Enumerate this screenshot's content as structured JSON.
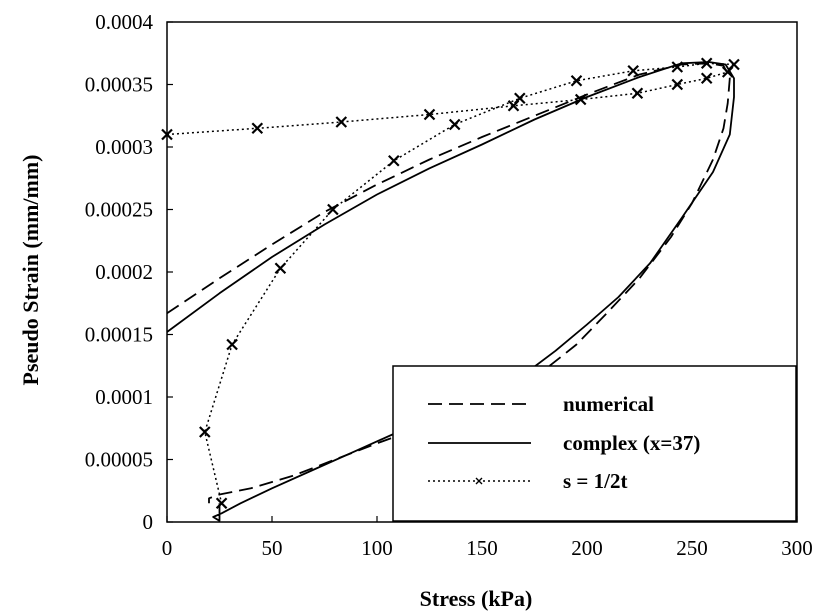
{
  "chart_data": {
    "type": "line",
    "xlabel": "Stress (kPa)",
    "ylabel": "Pseudo Strain (mm/mm)",
    "xlim": [
      0,
      300
    ],
    "ylim": [
      0,
      0.0004
    ],
    "x_ticks": [
      0,
      50,
      100,
      150,
      200,
      250,
      300
    ],
    "x_tick_labels": [
      "0",
      "50",
      "100",
      "150",
      "200",
      "250",
      "300"
    ],
    "y_ticks": [
      0,
      5e-05,
      0.0001,
      0.00015,
      0.0002,
      0.00025,
      0.0003,
      0.00035,
      0.0004
    ],
    "y_tick_labels": [
      "0",
      "0.00005",
      "0.0001",
      "0.00015",
      "0.0002",
      "0.00025",
      "0.0003",
      "0.00035",
      "0.0004"
    ],
    "grid": false,
    "legend_position": "bottom-right",
    "series": [
      {
        "name": "numerical",
        "style": "dashed",
        "color": "#000000",
        "points": [
          [
            0,
            0.000167
          ],
          [
            25,
            0.000195
          ],
          [
            50,
            0.000222
          ],
          [
            75,
            0.000248
          ],
          [
            100,
            0.00027
          ],
          [
            125,
            0.00029
          ],
          [
            150,
            0.000308
          ],
          [
            175,
            0.000325
          ],
          [
            200,
            0.000342
          ],
          [
            225,
            0.000358
          ],
          [
            245,
            0.000366
          ],
          [
            258,
            0.000367
          ],
          [
            265,
            0.000365
          ],
          [
            268,
            0.000355
          ],
          [
            267,
            0.000335
          ],
          [
            265,
            0.000315
          ],
          [
            260,
            0.00029
          ],
          [
            250,
            0.000255
          ],
          [
            240,
            0.000228
          ],
          [
            225,
            0.000195
          ],
          [
            210,
            0.000168
          ],
          [
            195,
            0.000142
          ],
          [
            180,
            0.000122
          ],
          [
            160,
            0.000102
          ],
          [
            140,
            8.7e-05
          ],
          [
            120,
            7.5e-05
          ],
          [
            100,
            6.3e-05
          ],
          [
            80,
            5e-05
          ],
          [
            60,
            3.7e-05
          ],
          [
            40,
            2.7e-05
          ],
          [
            25,
            2.2e-05
          ],
          [
            20,
            1.9e-05
          ],
          [
            20,
            1.5e-05
          ]
        ]
      },
      {
        "name": "complex (x=37)",
        "style": "solid",
        "color": "#000000",
        "points": [
          [
            0,
            0.000152
          ],
          [
            25,
            0.000183
          ],
          [
            50,
            0.000212
          ],
          [
            75,
            0.000238
          ],
          [
            100,
            0.000262
          ],
          [
            125,
            0.000283
          ],
          [
            150,
            0.000302
          ],
          [
            175,
            0.000322
          ],
          [
            200,
            0.00034
          ],
          [
            225,
            0.000356
          ],
          [
            245,
            0.000367
          ],
          [
            258,
            0.000368
          ],
          [
            266,
            0.000366
          ],
          [
            270,
            0.000355
          ],
          [
            270,
            0.00034
          ],
          [
            268,
            0.00031
          ],
          [
            260,
            0.00028
          ],
          [
            245,
            0.000243
          ],
          [
            230,
            0.000207
          ],
          [
            215,
            0.00018
          ],
          [
            200,
            0.000158
          ],
          [
            185,
            0.000137
          ],
          [
            170,
            0.000118
          ],
          [
            150,
            0.0001
          ],
          [
            130,
            8.5e-05
          ],
          [
            110,
            7.2e-05
          ],
          [
            90,
            5.7e-05
          ],
          [
            70,
            4.2e-05
          ],
          [
            50,
            2.7e-05
          ],
          [
            35,
            1.5e-05
          ],
          [
            26,
            7e-06
          ],
          [
            22,
            4e-06
          ],
          [
            25,
            1e-06
          ],
          [
            25,
            1.5e-05
          ]
        ]
      },
      {
        "name": "s = 1/2t",
        "style": "dotted",
        "marker": "x",
        "color": "#000000",
        "points": [
          [
            0,
            0.00031
          ],
          [
            43,
            0.000315
          ],
          [
            83,
            0.00032
          ],
          [
            125,
            0.000326
          ],
          [
            165,
            0.000333
          ],
          [
            197,
            0.000338
          ],
          [
            224,
            0.000343
          ],
          [
            243,
            0.00035
          ],
          [
            257,
            0.000355
          ],
          [
            267,
            0.00036
          ],
          [
            270,
            0.000366
          ],
          [
            257,
            0.000367
          ],
          [
            243,
            0.000364
          ],
          [
            222,
            0.000361
          ],
          [
            195,
            0.000353
          ],
          [
            168,
            0.000339
          ],
          [
            137,
            0.000318
          ],
          [
            108,
            0.000289
          ],
          [
            79,
            0.00025
          ],
          [
            54,
            0.000203
          ],
          [
            31,
            0.000142
          ],
          [
            18,
            7.2e-05
          ],
          [
            26,
            1.5e-05
          ]
        ]
      }
    ]
  }
}
